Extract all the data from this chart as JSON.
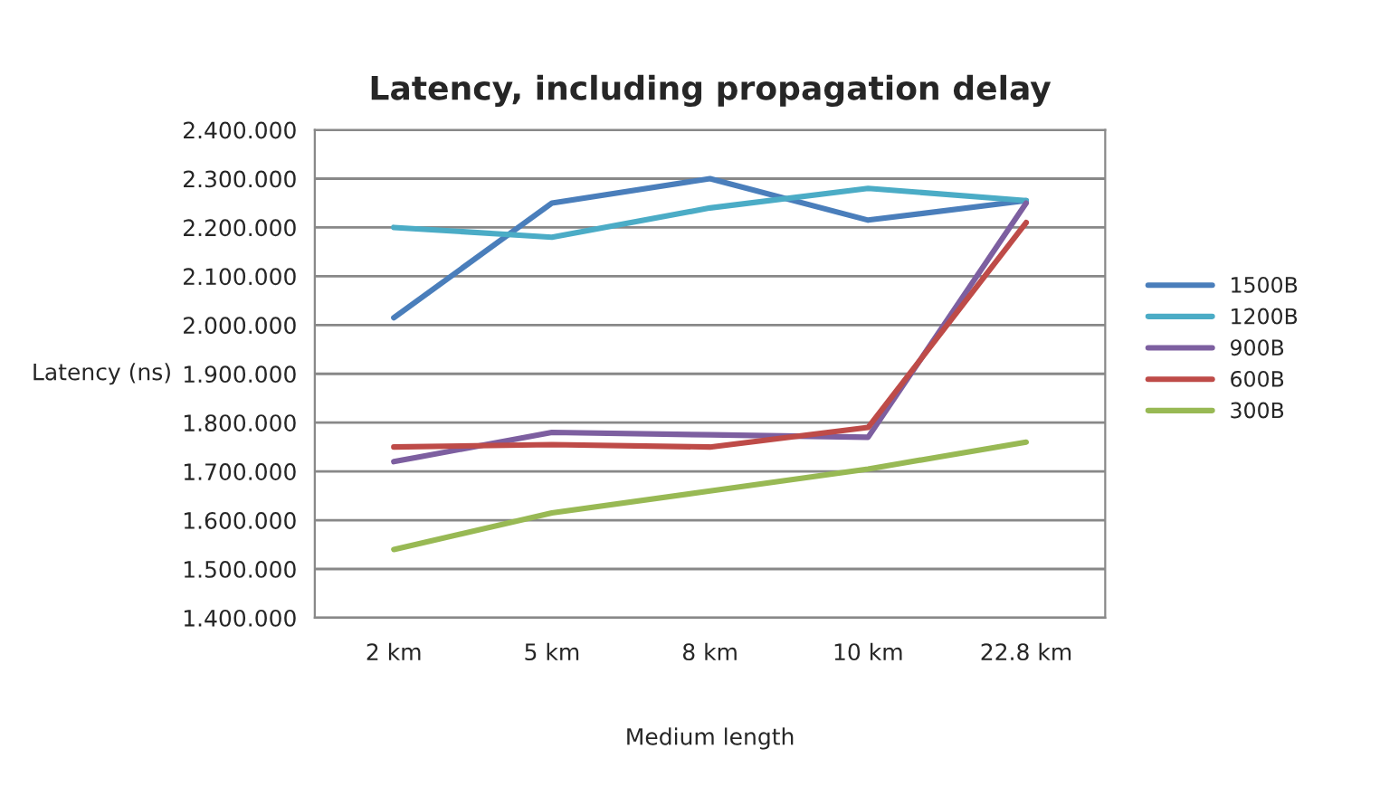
{
  "chart_data": {
    "type": "line",
    "title": "Latency, including propagation delay",
    "xlabel": "Medium length",
    "ylabel": "Latency (ns)",
    "categories": [
      "2 km",
      "5 km",
      "8 km",
      "10 km",
      "22.8 km"
    ],
    "series": [
      {
        "name": "1500B",
        "color": "#4a7ebb",
        "values": [
          2015000,
          2250000,
          2300000,
          2215000,
          2255000
        ]
      },
      {
        "name": "1200B",
        "color": "#4bacc6",
        "values": [
          2200000,
          2180000,
          2240000,
          2280000,
          2255000
        ]
      },
      {
        "name": "900B",
        "color": "#7d5fa0",
        "values": [
          1720000,
          1780000,
          1775000,
          1770000,
          2250000
        ]
      },
      {
        "name": "600B",
        "color": "#be4b48",
        "values": [
          1750000,
          1755000,
          1750000,
          1790000,
          2210000
        ]
      },
      {
        "name": "300B",
        "color": "#98b954",
        "values": [
          1540000,
          1615000,
          1660000,
          1705000,
          1760000
        ]
      }
    ],
    "ylim": [
      1400000,
      2400000
    ],
    "yticks": [
      {
        "value": 1400000,
        "label": "1.400.000"
      },
      {
        "value": 1500000,
        "label": "1.500.000"
      },
      {
        "value": 1600000,
        "label": "1.600.000"
      },
      {
        "value": 1700000,
        "label": "1.700.000"
      },
      {
        "value": 1800000,
        "label": "1.800.000"
      },
      {
        "value": 1900000,
        "label": "1.900.000"
      },
      {
        "value": 2000000,
        "label": "2.000.000"
      },
      {
        "value": 2100000,
        "label": "2.100.000"
      },
      {
        "value": 2200000,
        "label": "2.200.000"
      },
      {
        "value": 2300000,
        "label": "2.300.000"
      },
      {
        "value": 2400000,
        "label": "2.400.000"
      }
    ],
    "grid": "y",
    "legend": "right",
    "marker": "none",
    "line_style": "solid"
  }
}
